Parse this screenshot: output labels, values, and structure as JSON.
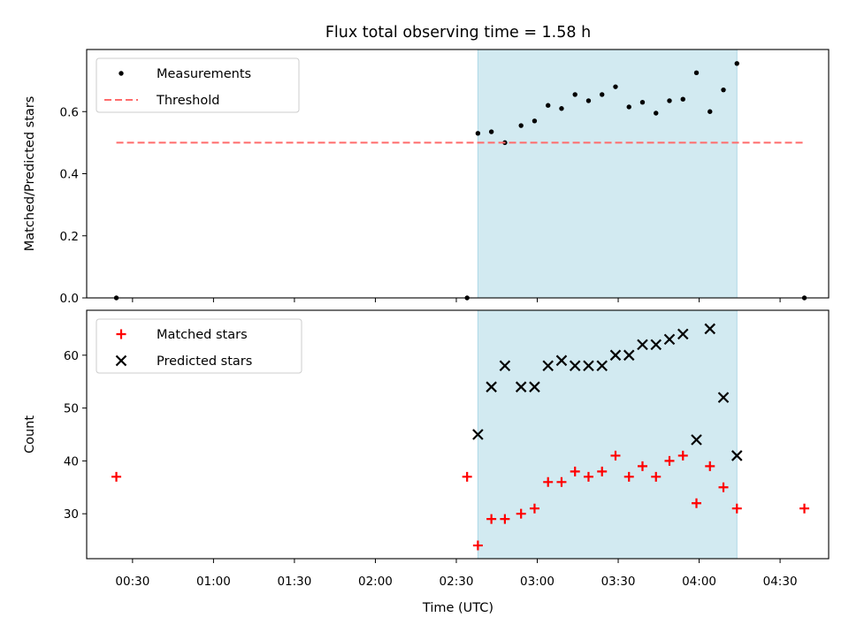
{
  "chart_data": {
    "title": "Flux total observing time = 1.58 h",
    "x_label": "Time (UTC)",
    "x_ticks": [
      "00:30",
      "01:00",
      "01:30",
      "02:00",
      "02:30",
      "03:00",
      "03:30",
      "04:00",
      "04:30"
    ],
    "x_range": [
      "00:13",
      "04:48"
    ],
    "shaded_interval": [
      "02:38",
      "04:14"
    ],
    "shaded_color": "#add8e6",
    "panels": [
      {
        "type": "scatter",
        "ylabel": "Matched/Predicted stars",
        "ylim": [
          0,
          0.8
        ],
        "y_ticks": [
          "0.0",
          "0.2",
          "0.4",
          "0.6"
        ],
        "legend_position": "top-left",
        "series": [
          {
            "name": "Measurements",
            "marker": "dot",
            "color": "#000000",
            "points": [
              [
                "00:24",
                0.0
              ],
              [
                "02:34",
                0.0
              ],
              [
                "02:38",
                0.53
              ],
              [
                "02:43",
                0.535
              ],
              [
                "02:48",
                0.5
              ],
              [
                "02:54",
                0.555
              ],
              [
                "02:59",
                0.57
              ],
              [
                "03:04",
                0.62
              ],
              [
                "03:09",
                0.61
              ],
              [
                "03:14",
                0.655
              ],
              [
                "03:19",
                0.635
              ],
              [
                "03:24",
                0.655
              ],
              [
                "03:29",
                0.68
              ],
              [
                "03:34",
                0.615
              ],
              [
                "03:39",
                0.63
              ],
              [
                "03:44",
                0.595
              ],
              [
                "03:49",
                0.635
              ],
              [
                "03:54",
                0.64
              ],
              [
                "03:59",
                0.725
              ],
              [
                "04:04",
                0.6
              ],
              [
                "04:09",
                0.67
              ],
              [
                "04:14",
                0.755
              ],
              [
                "04:39",
                0.0
              ]
            ]
          },
          {
            "name": "Threshold",
            "line_style": "dashed",
            "color": "#ff6b6b",
            "points": [
              [
                "00:24",
                0.5
              ],
              [
                "04:39",
                0.5
              ]
            ]
          }
        ]
      },
      {
        "type": "scatter",
        "ylabel": "Count",
        "ylim": [
          21.5,
          68.5
        ],
        "y_ticks": [
          "30",
          "40",
          "50",
          "60"
        ],
        "legend_position": "top-left",
        "series": [
          {
            "name": "Matched stars",
            "marker": "plus",
            "color": "#ff0000",
            "points": [
              [
                "00:24",
                37
              ],
              [
                "02:34",
                37
              ],
              [
                "02:38",
                24
              ],
              [
                "02:43",
                29
              ],
              [
                "02:48",
                29
              ],
              [
                "02:54",
                30
              ],
              [
                "02:59",
                31
              ],
              [
                "03:04",
                36
              ],
              [
                "03:09",
                36
              ],
              [
                "03:14",
                38
              ],
              [
                "03:19",
                37
              ],
              [
                "03:24",
                38
              ],
              [
                "03:29",
                41
              ],
              [
                "03:34",
                37
              ],
              [
                "03:39",
                39
              ],
              [
                "03:44",
                37
              ],
              [
                "03:49",
                40
              ],
              [
                "03:54",
                41
              ],
              [
                "03:59",
                32
              ],
              [
                "04:04",
                39
              ],
              [
                "04:09",
                35
              ],
              [
                "04:14",
                31
              ],
              [
                "04:39",
                31
              ]
            ]
          },
          {
            "name": "Predicted stars",
            "marker": "x",
            "color": "#000000",
            "points": [
              [
                "02:38",
                45
              ],
              [
                "02:43",
                54
              ],
              [
                "02:48",
                58
              ],
              [
                "02:54",
                54
              ],
              [
                "02:59",
                54
              ],
              [
                "03:04",
                58
              ],
              [
                "03:09",
                59
              ],
              [
                "03:14",
                58
              ],
              [
                "03:19",
                58
              ],
              [
                "03:24",
                58
              ],
              [
                "03:29",
                60
              ],
              [
                "03:34",
                60
              ],
              [
                "03:39",
                62
              ],
              [
                "03:44",
                62
              ],
              [
                "03:49",
                63
              ],
              [
                "03:54",
                64
              ],
              [
                "03:59",
                44
              ],
              [
                "04:04",
                65
              ],
              [
                "04:09",
                52
              ],
              [
                "04:14",
                41
              ]
            ]
          }
        ]
      }
    ]
  }
}
